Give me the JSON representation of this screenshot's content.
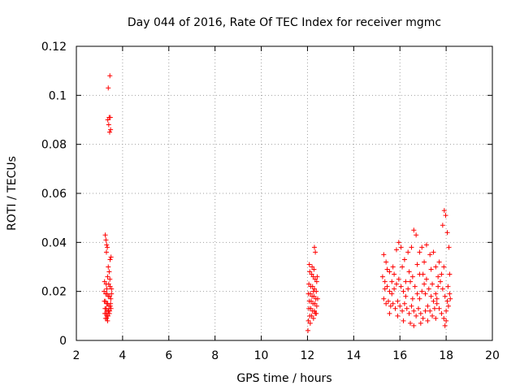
{
  "chart_data": {
    "type": "scatter",
    "title": "Day 044 of 2016, Rate Of TEC Index for receiver mgmc",
    "xlabel": "GPS time / hours",
    "ylabel": "ROTI / TECUs",
    "xlim": [
      2,
      20
    ],
    "ylim": [
      0,
      0.12
    ],
    "x_ticks": [
      "2",
      "4",
      "6",
      "8",
      "10",
      "12",
      "14",
      "16",
      "18",
      "20"
    ],
    "y_ticks": [
      "0",
      "0.02",
      "0.04",
      "0.06",
      "0.08",
      "0.1",
      "0.12"
    ],
    "grid": true,
    "marker": "+",
    "series": [
      {
        "name": "ROTI",
        "color": "#ff0000",
        "points": [
          [
            3.45,
            0.108
          ],
          [
            3.38,
            0.103
          ],
          [
            3.42,
            0.091
          ],
          [
            3.47,
            0.091
          ],
          [
            3.36,
            0.09
          ],
          [
            3.4,
            0.088
          ],
          [
            3.44,
            0.085
          ],
          [
            3.48,
            0.086
          ],
          [
            3.25,
            0.043
          ],
          [
            3.28,
            0.041
          ],
          [
            3.31,
            0.039
          ],
          [
            3.34,
            0.038
          ],
          [
            3.3,
            0.036
          ],
          [
            3.5,
            0.034
          ],
          [
            3.46,
            0.033
          ],
          [
            3.38,
            0.03
          ],
          [
            3.42,
            0.028
          ],
          [
            3.35,
            0.026
          ],
          [
            3.22,
            0.024
          ],
          [
            3.29,
            0.023
          ],
          [
            3.4,
            0.023
          ],
          [
            3.46,
            0.022
          ],
          [
            3.52,
            0.021
          ],
          [
            3.2,
            0.02
          ],
          [
            3.27,
            0.019
          ],
          [
            3.33,
            0.019
          ],
          [
            3.38,
            0.018
          ],
          [
            3.44,
            0.018
          ],
          [
            3.49,
            0.017
          ],
          [
            3.21,
            0.016
          ],
          [
            3.26,
            0.016
          ],
          [
            3.31,
            0.015
          ],
          [
            3.36,
            0.015
          ],
          [
            3.41,
            0.014
          ],
          [
            3.47,
            0.014
          ],
          [
            3.24,
            0.013
          ],
          [
            3.29,
            0.013
          ],
          [
            3.34,
            0.012
          ],
          [
            3.39,
            0.012
          ],
          [
            3.44,
            0.012
          ],
          [
            3.5,
            0.013
          ],
          [
            3.23,
            0.011
          ],
          [
            3.28,
            0.011
          ],
          [
            3.33,
            0.01
          ],
          [
            3.37,
            0.01
          ],
          [
            3.43,
            0.011
          ],
          [
            3.26,
            0.009
          ],
          [
            3.31,
            0.009
          ],
          [
            3.35,
            0.008
          ],
          [
            3.48,
            0.015
          ],
          [
            3.52,
            0.019
          ],
          [
            3.45,
            0.025
          ],
          [
            3.32,
            0.021
          ],
          [
            12.3,
            0.038
          ],
          [
            12.34,
            0.036
          ],
          [
            12.08,
            0.031
          ],
          [
            12.2,
            0.03
          ],
          [
            12.28,
            0.029
          ],
          [
            12.1,
            0.028
          ],
          [
            12.18,
            0.027
          ],
          [
            12.25,
            0.026
          ],
          [
            12.33,
            0.025
          ],
          [
            12.4,
            0.024
          ],
          [
            12.06,
            0.023
          ],
          [
            12.14,
            0.022
          ],
          [
            12.22,
            0.022
          ],
          [
            12.3,
            0.021
          ],
          [
            12.38,
            0.02
          ],
          [
            12.04,
            0.019
          ],
          [
            12.12,
            0.019
          ],
          [
            12.2,
            0.018
          ],
          [
            12.28,
            0.018
          ],
          [
            12.36,
            0.017
          ],
          [
            12.44,
            0.017
          ],
          [
            12.08,
            0.016
          ],
          [
            12.16,
            0.016
          ],
          [
            12.24,
            0.015
          ],
          [
            12.32,
            0.015
          ],
          [
            12.4,
            0.014
          ],
          [
            12.06,
            0.013
          ],
          [
            12.14,
            0.013
          ],
          [
            12.22,
            0.012
          ],
          [
            12.3,
            0.012
          ],
          [
            12.38,
            0.011
          ],
          [
            12.1,
            0.01
          ],
          [
            12.18,
            0.01
          ],
          [
            12.26,
            0.009
          ],
          [
            12.34,
            0.011
          ],
          [
            12.04,
            0.008
          ],
          [
            12.12,
            0.007
          ],
          [
            12.02,
            0.004
          ],
          [
            12.26,
            0.02
          ],
          [
            12.42,
            0.026
          ],
          [
            15.3,
            0.035
          ],
          [
            15.4,
            0.032
          ],
          [
            15.55,
            0.028
          ],
          [
            15.7,
            0.03
          ],
          [
            15.85,
            0.037
          ],
          [
            15.95,
            0.04
          ],
          [
            16.05,
            0.038
          ],
          [
            16.2,
            0.033
          ],
          [
            16.35,
            0.036
          ],
          [
            16.5,
            0.038
          ],
          [
            16.6,
            0.045
          ],
          [
            16.7,
            0.043
          ],
          [
            16.85,
            0.036
          ],
          [
            16.95,
            0.038
          ],
          [
            17.05,
            0.032
          ],
          [
            17.15,
            0.039
          ],
          [
            17.3,
            0.035
          ],
          [
            17.45,
            0.036
          ],
          [
            17.55,
            0.03
          ],
          [
            17.7,
            0.032
          ],
          [
            17.85,
            0.047
          ],
          [
            17.92,
            0.053
          ],
          [
            17.98,
            0.051
          ],
          [
            18.05,
            0.044
          ],
          [
            18.12,
            0.038
          ],
          [
            15.25,
            0.026
          ],
          [
            15.35,
            0.024
          ],
          [
            15.45,
            0.022
          ],
          [
            15.55,
            0.02
          ],
          [
            15.65,
            0.019
          ],
          [
            15.75,
            0.021
          ],
          [
            15.85,
            0.023
          ],
          [
            15.95,
            0.025
          ],
          [
            16.05,
            0.022
          ],
          [
            16.15,
            0.02
          ],
          [
            16.25,
            0.018
          ],
          [
            16.35,
            0.021
          ],
          [
            16.45,
            0.024
          ],
          [
            16.55,
            0.026
          ],
          [
            16.65,
            0.022
          ],
          [
            16.75,
            0.019
          ],
          [
            16.85,
            0.017
          ],
          [
            16.95,
            0.02
          ],
          [
            17.05,
            0.023
          ],
          [
            17.15,
            0.025
          ],
          [
            17.25,
            0.021
          ],
          [
            17.35,
            0.018
          ],
          [
            17.45,
            0.016
          ],
          [
            17.55,
            0.019
          ],
          [
            17.65,
            0.022
          ],
          [
            17.75,
            0.024
          ],
          [
            17.85,
            0.021
          ],
          [
            17.95,
            0.018
          ],
          [
            18.05,
            0.016
          ],
          [
            18.15,
            0.019
          ],
          [
            15.3,
            0.017
          ],
          [
            15.4,
            0.015
          ],
          [
            15.5,
            0.016
          ],
          [
            15.6,
            0.014
          ],
          [
            15.7,
            0.015
          ],
          [
            15.8,
            0.013
          ],
          [
            15.9,
            0.016
          ],
          [
            16.0,
            0.014
          ],
          [
            16.1,
            0.012
          ],
          [
            16.2,
            0.015
          ],
          [
            16.3,
            0.013
          ],
          [
            16.4,
            0.011
          ],
          [
            16.5,
            0.014
          ],
          [
            16.6,
            0.012
          ],
          [
            16.7,
            0.01
          ],
          [
            16.8,
            0.013
          ],
          [
            16.9,
            0.011
          ],
          [
            17.0,
            0.009
          ],
          [
            17.1,
            0.012
          ],
          [
            17.2,
            0.014
          ],
          [
            17.3,
            0.012
          ],
          [
            17.4,
            0.01
          ],
          [
            17.5,
            0.013
          ],
          [
            17.6,
            0.015
          ],
          [
            17.7,
            0.013
          ],
          [
            17.8,
            0.011
          ],
          [
            17.9,
            0.009
          ],
          [
            18.0,
            0.012
          ],
          [
            18.1,
            0.014
          ],
          [
            18.18,
            0.017
          ],
          [
            15.55,
            0.011
          ],
          [
            15.9,
            0.01
          ],
          [
            16.15,
            0.008
          ],
          [
            16.45,
            0.007
          ],
          [
            16.6,
            0.006
          ],
          [
            16.9,
            0.007
          ],
          [
            17.2,
            0.008
          ],
          [
            17.55,
            0.009
          ],
          [
            17.95,
            0.006
          ],
          [
            18.0,
            0.008
          ],
          [
            15.45,
            0.029
          ],
          [
            15.75,
            0.027
          ],
          [
            16.1,
            0.03
          ],
          [
            16.4,
            0.028
          ],
          [
            16.75,
            0.031
          ],
          [
            17.0,
            0.027
          ],
          [
            17.35,
            0.029
          ],
          [
            17.65,
            0.026
          ],
          [
            17.9,
            0.03
          ],
          [
            18.15,
            0.027
          ],
          [
            16.25,
            0.024
          ],
          [
            16.55,
            0.017
          ],
          [
            16.85,
            0.027
          ],
          [
            17.1,
            0.019
          ],
          [
            17.4,
            0.023
          ],
          [
            17.6,
            0.017
          ],
          [
            17.8,
            0.027
          ],
          [
            18.08,
            0.022
          ],
          [
            15.65,
            0.024
          ],
          [
            15.35,
            0.021
          ]
        ]
      }
    ]
  }
}
